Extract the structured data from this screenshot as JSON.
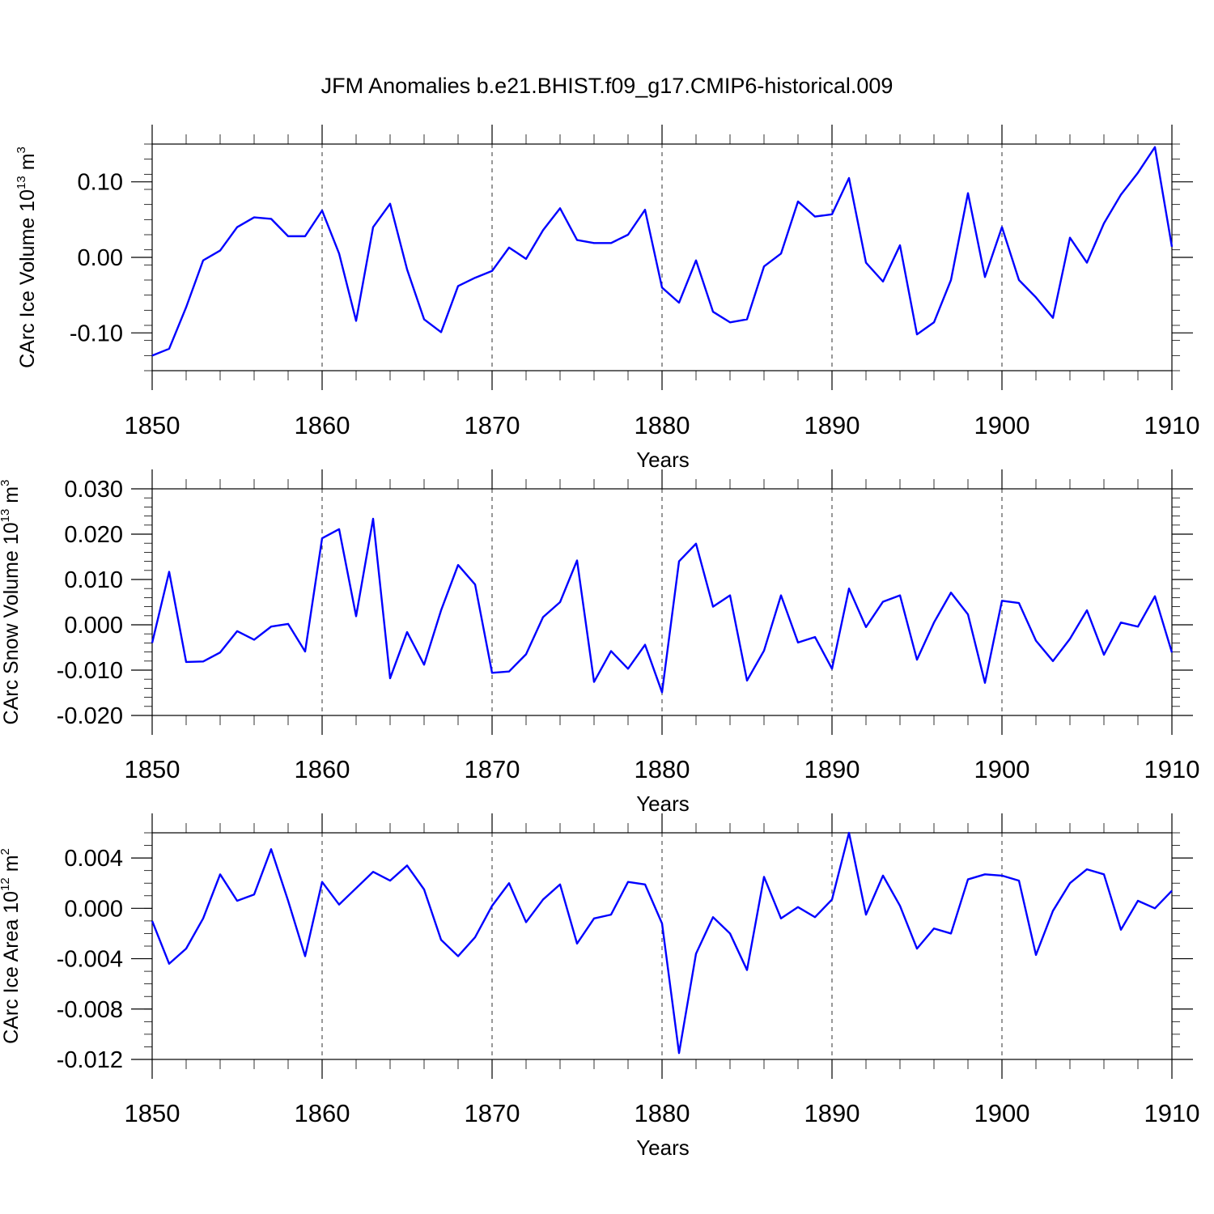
{
  "colors": {
    "series": "#0000ff",
    "axis": "#000000",
    "background": "#ffffff"
  },
  "chart_data": [
    {
      "type": "line",
      "title": "JFM Anomalies b.e21.BHIST.f09_g17.CMIP6-historical.009",
      "xlabel": "Years",
      "ylabel_main": "CArc Ice Volume 10",
      "ylabel_exp": "13",
      "ylabel_unit": " m",
      "ylabel_unit_exp": "3",
      "xlim": [
        1850,
        1910
      ],
      "ylim": [
        -0.15,
        0.15
      ],
      "x_ticks": [
        1850,
        1860,
        1870,
        1880,
        1890,
        1900,
        1910
      ],
      "x_tick_labels": [
        "1850",
        "1860",
        "1870",
        "1880",
        "1890",
        "1900",
        "1910"
      ],
      "y_ticks": [
        -0.1,
        0.0,
        0.1
      ],
      "y_tick_labels": [
        "-0.10",
        "0.00",
        "0.10"
      ],
      "y_minor_step": 0.02,
      "grid": "vertical dashed at decades",
      "x": [
        1850,
        1851,
        1852,
        1853,
        1854,
        1855,
        1856,
        1857,
        1858,
        1859,
        1860,
        1861,
        1862,
        1863,
        1864,
        1865,
        1866,
        1867,
        1868,
        1869,
        1870,
        1871,
        1872,
        1873,
        1874,
        1875,
        1876,
        1877,
        1878,
        1879,
        1880,
        1881,
        1882,
        1883,
        1884,
        1885,
        1886,
        1887,
        1888,
        1889,
        1890,
        1891,
        1892,
        1893,
        1894,
        1895,
        1896,
        1897,
        1898,
        1899,
        1900,
        1901,
        1902,
        1903,
        1904,
        1905,
        1906,
        1907,
        1908,
        1909,
        1910
      ],
      "values": [
        -0.13,
        -0.121,
        -0.066,
        -0.004,
        0.009,
        0.04,
        0.053,
        0.051,
        0.028,
        0.028,
        0.062,
        0.005,
        -0.084,
        0.04,
        0.071,
        -0.016,
        -0.082,
        -0.099,
        -0.038,
        -0.027,
        -0.018,
        0.013,
        -0.002,
        0.036,
        0.065,
        0.023,
        0.019,
        0.019,
        0.03,
        0.063,
        -0.04,
        -0.06,
        -0.004,
        -0.072,
        -0.086,
        -0.082,
        -0.012,
        0.005,
        0.074,
        0.054,
        0.057,
        0.105,
        -0.007,
        -0.032,
        0.016,
        -0.102,
        -0.086,
        -0.03,
        0.085,
        -0.026,
        0.04,
        -0.03,
        -0.053,
        -0.08,
        0.026,
        -0.007,
        0.045,
        0.083,
        0.112,
        0.146,
        0.014
      ]
    },
    {
      "type": "line",
      "xlabel": "Years",
      "ylabel_main": "CArc Snow Volume 10",
      "ylabel_exp": "13",
      "ylabel_unit": " m",
      "ylabel_unit_exp": "3",
      "xlim": [
        1850,
        1910
      ],
      "ylim": [
        -0.02,
        0.03
      ],
      "x_ticks": [
        1850,
        1860,
        1870,
        1880,
        1890,
        1900,
        1910
      ],
      "x_tick_labels": [
        "1850",
        "1860",
        "1870",
        "1880",
        "1890",
        "1900",
        "1910"
      ],
      "y_ticks": [
        -0.02,
        -0.01,
        0.0,
        0.01,
        0.02,
        0.03
      ],
      "y_tick_labels": [
        "-0.020",
        "-0.010",
        "0.000",
        "0.010",
        "0.020",
        "0.030"
      ],
      "y_minor_step": 0.002,
      "grid": "vertical dashed at decades",
      "x": [
        1850,
        1851,
        1852,
        1853,
        1854,
        1855,
        1856,
        1857,
        1858,
        1859,
        1860,
        1861,
        1862,
        1863,
        1864,
        1865,
        1866,
        1867,
        1868,
        1869,
        1870,
        1871,
        1872,
        1873,
        1874,
        1875,
        1876,
        1877,
        1878,
        1879,
        1880,
        1881,
        1882,
        1883,
        1884,
        1885,
        1886,
        1887,
        1888,
        1889,
        1890,
        1891,
        1892,
        1893,
        1894,
        1895,
        1896,
        1897,
        1898,
        1899,
        1900,
        1901,
        1902,
        1903,
        1904,
        1905,
        1906,
        1907,
        1908,
        1909,
        1910
      ],
      "values": [
        -0.004,
        0.0117,
        -0.0082,
        -0.0081,
        -0.0061,
        -0.0014,
        -0.0033,
        -0.0004,
        0.0002,
        -0.0059,
        0.0191,
        0.0211,
        0.0019,
        0.0234,
        -0.0118,
        -0.0016,
        -0.0088,
        0.0032,
        0.0132,
        0.0089,
        -0.0106,
        -0.0103,
        -0.0065,
        0.0017,
        0.005,
        0.0142,
        -0.0126,
        -0.0058,
        -0.0097,
        -0.0044,
        -0.0149,
        0.014,
        0.0179,
        0.004,
        0.0065,
        -0.0123,
        -0.0057,
        0.0065,
        -0.0039,
        -0.0027,
        -0.0097,
        0.008,
        -0.0005,
        0.0051,
        0.0065,
        -0.0077,
        0.0005,
        0.0071,
        0.0023,
        -0.0128,
        0.0053,
        0.0048,
        -0.0035,
        -0.008,
        -0.0031,
        0.0032,
        -0.0066,
        0.0005,
        -0.0004,
        0.0063,
        -0.0061
      ]
    },
    {
      "type": "line",
      "xlabel": "Years",
      "ylabel_main": "CArc Ice Area 10",
      "ylabel_exp": "12",
      "ylabel_unit": " m",
      "ylabel_unit_exp": "2",
      "xlim": [
        1850,
        1910
      ],
      "ylim": [
        -0.012,
        0.006
      ],
      "x_ticks": [
        1850,
        1860,
        1870,
        1880,
        1890,
        1900,
        1910
      ],
      "x_tick_labels": [
        "1850",
        "1860",
        "1870",
        "1880",
        "1890",
        "1900",
        "1910"
      ],
      "y_ticks": [
        -0.012,
        -0.008,
        -0.004,
        0.0,
        0.004
      ],
      "y_tick_labels": [
        "-0.012",
        "-0.008",
        "-0.004",
        "0.000",
        "0.004"
      ],
      "y_minor_step": 0.001,
      "grid": "vertical dashed at decades",
      "x": [
        1850,
        1851,
        1852,
        1853,
        1854,
        1855,
        1856,
        1857,
        1858,
        1859,
        1860,
        1861,
        1862,
        1863,
        1864,
        1865,
        1866,
        1867,
        1868,
        1869,
        1870,
        1871,
        1872,
        1873,
        1874,
        1875,
        1876,
        1877,
        1878,
        1879,
        1880,
        1881,
        1882,
        1883,
        1884,
        1885,
        1886,
        1887,
        1888,
        1889,
        1890,
        1891,
        1892,
        1893,
        1894,
        1895,
        1896,
        1897,
        1898,
        1899,
        1900,
        1901,
        1902,
        1903,
        1904,
        1905,
        1906,
        1907,
        1908,
        1909,
        1910
      ],
      "values": [
        -0.001,
        -0.0044,
        -0.0032,
        -0.0008,
        0.0027,
        0.0006,
        0.0011,
        0.0047,
        0.0006,
        -0.0038,
        0.0021,
        0.0003,
        0.0016,
        0.0029,
        0.0022,
        0.0034,
        0.0015,
        -0.0025,
        -0.0038,
        -0.0023,
        0.0002,
        0.002,
        -0.0011,
        0.0007,
        0.0019,
        -0.0028,
        -0.0008,
        -0.0005,
        0.0021,
        0.0019,
        -0.0012,
        -0.0115,
        -0.0036,
        -0.0007,
        -0.002,
        -0.0049,
        0.0025,
        -0.0008,
        0.0001,
        -0.0007,
        0.0007,
        0.006,
        -0.0005,
        0.0026,
        0.0002,
        -0.0032,
        -0.0016,
        -0.002,
        0.0023,
        0.0027,
        0.0026,
        0.0022,
        -0.0037,
        -0.0002,
        0.002,
        0.0031,
        0.0027,
        -0.0017,
        0.0006,
        0.0,
        0.0014
      ]
    }
  ]
}
